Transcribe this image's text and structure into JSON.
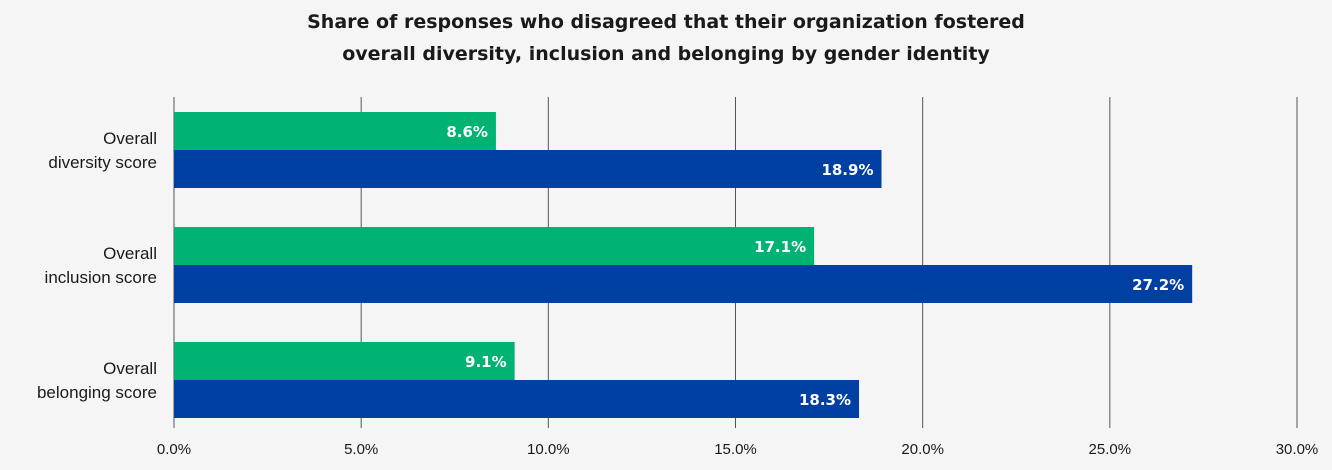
{
  "chart_data": {
    "type": "bar",
    "orientation": "horizontal",
    "title": "Share of responses who disagreed that their organization fostered overall diversity, inclusion and belonging by gender identity",
    "title_lines": [
      "Share of responses who disagreed that their organization fostered",
      "overall diversity, inclusion and belonging by gender identity"
    ],
    "categories": [
      [
        "Overall",
        "diversity score"
      ],
      [
        "Overall",
        "inclusion score"
      ],
      [
        "Overall",
        "belonging score"
      ]
    ],
    "series": [
      {
        "values": [
          8.6,
          17.1,
          9.1
        ],
        "labels": [
          "8.6%",
          "17.1%",
          "9.1%"
        ],
        "color": "#00b373"
      },
      {
        "values": [
          18.9,
          27.2,
          18.3
        ],
        "labels": [
          "18.9%",
          "27.2%",
          "18.3%"
        ],
        "color": "#0040a3"
      }
    ],
    "xlim": [
      0,
      30
    ],
    "xticks": [
      0,
      5,
      10,
      15,
      20,
      25,
      30
    ],
    "xtick_labels": [
      "0.0%",
      "5.0%",
      "10.0%",
      "15.0%",
      "20.0%",
      "25.0%",
      "30.0%"
    ],
    "grid": "vertical",
    "legend": "none"
  }
}
